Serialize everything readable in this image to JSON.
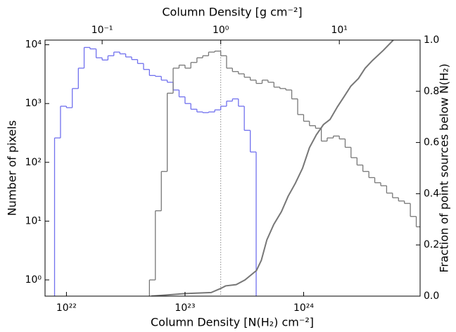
{
  "chart_data": {
    "type": "histogram",
    "x_label": "Column Density [N(H₂) cm⁻²]",
    "y_label": "Number of pixels",
    "y2_label": "Fraction of point sources below N(H₂)",
    "top_label": "Column Density [g cm⁻²]",
    "xlog": true,
    "ylog": true,
    "xlim": [
      6.6e+21,
      9.6e+24
    ],
    "ylim": [
      0.53,
      12000
    ],
    "y2lim": [
      0,
      1
    ],
    "toplim": [
      0.033,
      48
    ],
    "xticks": [
      {
        "value": 1e+22,
        "label": "10²²"
      },
      {
        "value": 1e+23,
        "label": "10²³"
      },
      {
        "value": 1e+24,
        "label": "10²⁴"
      }
    ],
    "yticks": [
      {
        "value": 1,
        "label": "10⁰"
      },
      {
        "value": 10,
        "label": "10¹"
      },
      {
        "value": 100,
        "label": "10²"
      },
      {
        "value": 1000,
        "label": "10³"
      },
      {
        "value": 10000,
        "label": "10⁴"
      }
    ],
    "y2ticks": [
      {
        "value": 0,
        "label": "0.0"
      },
      0.2,
      0.4,
      0.6,
      0.8,
      {
        "value": 1,
        "label": "1.0"
      }
    ],
    "topticks": [
      {
        "value": 0.1,
        "label": "10⁻¹"
      },
      {
        "value": 1,
        "label": "10⁰"
      },
      {
        "value": 10,
        "label": "10¹"
      }
    ],
    "vline": 2e+23,
    "bins": [
      7.94e+21,
      8.91e+21,
      1e+22,
      1.12e+22,
      1.26e+22,
      1.41e+22,
      1.58e+22,
      1.78e+22,
      2e+22,
      2.24e+22,
      2.51e+22,
      2.82e+22,
      3.16e+22,
      3.55e+22,
      3.98e+22,
      4.47e+22,
      5.01e+22,
      5.62e+22,
      6.31e+22,
      7.08e+22,
      7.94e+22,
      8.91e+22,
      1e+23,
      1.12e+23,
      1.26e+23,
      1.41e+23,
      1.58e+23,
      1.78e+23,
      2e+23,
      2.24e+23,
      2.51e+23,
      2.82e+23,
      3.16e+23,
      3.55e+23,
      3.98e+23,
      4.47e+23,
      5.01e+23,
      5.62e+23,
      6.31e+23,
      7.08e+23,
      7.94e+23,
      8.91e+23,
      1e+24,
      1.12e+24,
      1.26e+24,
      1.41e+24,
      1.58e+24,
      1.78e+24,
      2e+24,
      2.24e+24,
      2.51e+24,
      2.82e+24,
      3.16e+24,
      3.55e+24,
      3.98e+24,
      4.47e+24,
      5.01e+24,
      5.62e+24,
      6.31e+24,
      7.08e+24,
      7.94e+24,
      8.91e+24,
      1e+25
    ],
    "series": [
      {
        "color": "#7070ee",
        "values": [
          260,
          900,
          850,
          1800,
          4000,
          9000,
          8500,
          6000,
          5500,
          6500,
          7500,
          7000,
          6200,
          5600,
          4800,
          3800,
          3000,
          2900,
          2500,
          2300,
          1700,
          1300,
          1000,
          800,
          720,
          700,
          720,
          780,
          900,
          1100,
          1200,
          900,
          350,
          150,
          null,
          null,
          null,
          null,
          null,
          null,
          null,
          null,
          null,
          null,
          null,
          null,
          null,
          null,
          null,
          null,
          null,
          null,
          null,
          null,
          null,
          null,
          null,
          null,
          null,
          null,
          null,
          null
        ]
      },
      {
        "color": "#777777",
        "values": [
          null,
          null,
          null,
          null,
          null,
          null,
          null,
          null,
          null,
          null,
          null,
          null,
          null,
          null,
          null,
          null,
          1,
          15,
          70,
          1500,
          4000,
          4500,
          4000,
          5000,
          6000,
          6500,
          7500,
          7800,
          6500,
          4000,
          3500,
          3200,
          2800,
          2500,
          2200,
          2500,
          2300,
          1900,
          1800,
          1700,
          1200,
          650,
          500,
          420,
          380,
          230,
          260,
          280,
          250,
          180,
          120,
          90,
          70,
          55,
          45,
          40,
          30,
          25,
          22,
          20,
          12,
          8
        ]
      },
      {
        "type": "line",
        "axis": "y2",
        "color": "#777777",
        "x": [
          5.2e+22,
          1e+23,
          1.66e+23,
          2e+23,
          2.2e+23,
          2.7e+23,
          3.2e+23,
          4e+23,
          4.4e+23,
          4.9e+23,
          5.6e+23,
          6.5e+23,
          7.4e+23,
          8.5e+23,
          9.8e+23,
          1.12e+24,
          1.28e+24,
          1.47e+24,
          1.67e+24,
          1.93e+24,
          2.2e+24,
          2.5e+24,
          2.9e+24,
          3.3e+24,
          3.8e+24,
          4.7e+24,
          5.7e+24
        ],
        "values": [
          0,
          0.01,
          0.014,
          0.03,
          0.04,
          0.045,
          0.063,
          0.1,
          0.14,
          0.22,
          0.28,
          0.33,
          0.39,
          0.44,
          0.5,
          0.58,
          0.63,
          0.67,
          0.69,
          0.74,
          0.78,
          0.82,
          0.85,
          0.89,
          0.92,
          0.96,
          1.0
        ]
      }
    ]
  }
}
